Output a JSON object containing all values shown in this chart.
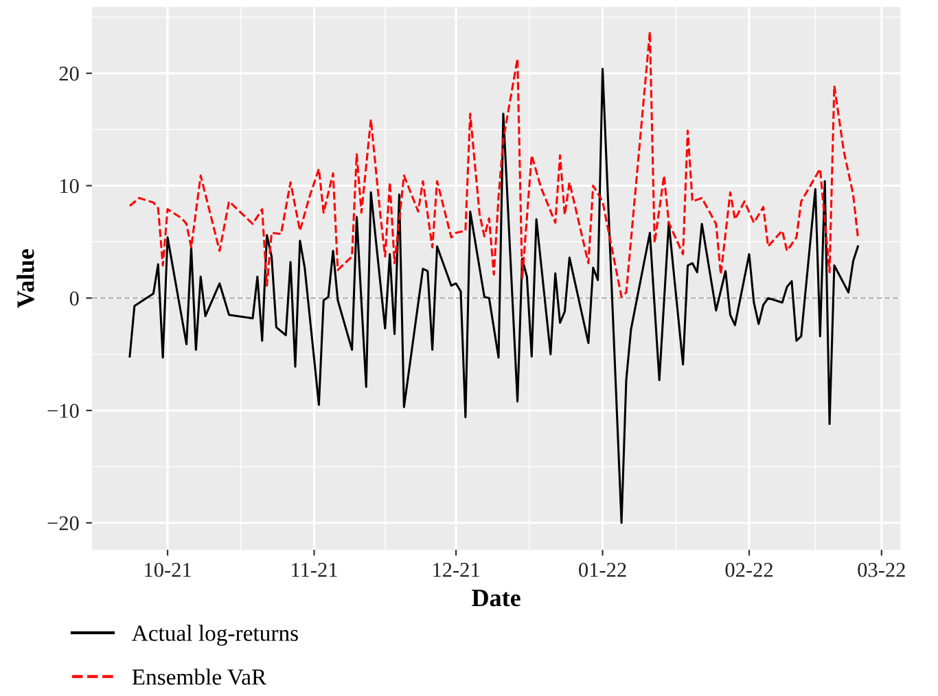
{
  "chart_data": {
    "type": "line",
    "xlabel": "Date",
    "ylabel": "Value",
    "xlim": [
      "2021-09-15",
      "2022-03-05"
    ],
    "ylim": [
      -22.4,
      25.9
    ],
    "xticks": [
      {
        "value": "2021-10-01",
        "label": "10-21"
      },
      {
        "value": "2021-11-01",
        "label": "11-21"
      },
      {
        "value": "2021-12-01",
        "label": "12-21"
      },
      {
        "value": "2022-01-01",
        "label": "01-22"
      },
      {
        "value": "2022-02-01",
        "label": "02-22"
      },
      {
        "value": "2022-03-01",
        "label": "03-22"
      }
    ],
    "yticks": [
      -20,
      -10,
      0,
      10,
      20
    ],
    "grid": true,
    "legend": "bottom left",
    "ref_lines": [
      {
        "axis": "y",
        "value": 0,
        "color": "#aaaaaa",
        "line_style": "dashed"
      }
    ],
    "series": [
      {
        "name": "Actual log-returns",
        "color": "#000000",
        "line_style": "solid",
        "x": [
          "2021-09-23",
          "2021-09-24",
          "2021-09-28",
          "2021-09-29",
          "2021-09-30",
          "2021-10-01",
          "2021-10-05",
          "2021-10-06",
          "2021-10-07",
          "2021-10-08",
          "2021-10-09",
          "2021-10-12",
          "2021-10-14",
          "2021-10-19",
          "2021-10-20",
          "2021-10-21",
          "2021-10-22",
          "2021-10-23",
          "2021-10-24",
          "2021-10-26",
          "2021-10-27",
          "2021-10-28",
          "2021-10-29",
          "2021-10-30",
          "2021-11-02",
          "2021-11-03",
          "2021-11-04",
          "2021-11-05",
          "2021-11-06",
          "2021-11-09",
          "2021-11-10",
          "2021-11-12",
          "2021-11-13",
          "2021-11-16",
          "2021-11-17",
          "2021-11-18",
          "2021-11-19",
          "2021-11-20",
          "2021-11-24",
          "2021-11-25",
          "2021-11-26",
          "2021-11-27",
          "2021-11-30",
          "2021-12-01",
          "2021-12-02",
          "2021-12-03",
          "2021-12-04",
          "2021-12-07",
          "2021-12-08",
          "2021-12-10",
          "2021-12-11",
          "2021-12-14",
          "2021-12-15",
          "2021-12-16",
          "2021-12-17",
          "2021-12-18",
          "2021-12-21",
          "2021-12-22",
          "2021-12-23",
          "2021-12-24",
          "2021-12-25",
          "2021-12-29",
          "2021-12-30",
          "2021-12-31",
          "2022-01-01",
          "2022-01-05",
          "2022-01-06",
          "2022-01-07",
          "2022-01-11",
          "2022-01-13",
          "2022-01-15",
          "2022-01-18",
          "2022-01-19",
          "2022-01-20",
          "2022-01-21",
          "2022-01-22",
          "2022-01-25",
          "2022-01-27",
          "2022-01-28",
          "2022-01-29",
          "2022-02-01",
          "2022-02-02",
          "2022-02-03",
          "2022-02-04",
          "2022-02-05",
          "2022-02-08",
          "2022-02-09",
          "2022-02-10",
          "2022-02-11",
          "2022-02-12",
          "2022-02-15",
          "2022-02-16",
          "2022-02-17",
          "2022-02-18",
          "2022-02-19",
          "2022-02-22",
          "2022-02-23",
          "2022-02-24"
        ],
        "values": [
          -5.2,
          -0.7,
          0.4,
          3.0,
          -5.3,
          5.4,
          -4.1,
          4.5,
          -4.6,
          1.9,
          -1.6,
          1.3,
          -1.5,
          -1.8,
          1.9,
          -3.8,
          5.6,
          3.7,
          -2.6,
          -3.3,
          3.2,
          -6.1,
          5.1,
          2.7,
          -9.5,
          -0.2,
          0.1,
          4.2,
          -0.2,
          -4.6,
          7.2,
          -7.9,
          9.4,
          -2.7,
          3.9,
          -3.2,
          9.2,
          -9.7,
          2.6,
          2.4,
          -4.6,
          4.6,
          1.1,
          1.3,
          0.6,
          -10.6,
          7.7,
          0.1,
          0,
          -5.3,
          16.4,
          -9.2,
          3.5,
          1.9,
          -5.2,
          7.0,
          -5.0,
          2.2,
          -2.2,
          -1.2,
          3.6,
          -4.0,
          2.7,
          1.6,
          20.4,
          -20.0,
          -7.3,
          -2.8,
          5.8,
          -7.3,
          6.7,
          -5.9,
          2.9,
          3.1,
          2.3,
          6.6,
          -1.1,
          2.4,
          -1.5,
          -2.4,
          3.9,
          -0.4,
          -2.3,
          -0.6,
          0,
          -0.4,
          1.0,
          1.5,
          -3.8,
          -3.4,
          9.7,
          -3.4,
          10.4,
          -11.2,
          2.9,
          0.5,
          3.3,
          4.6
        ]
      },
      {
        "name": "Ensemble VaR",
        "color": "#ff0000",
        "line_style": "dashed",
        "x": [
          "2021-09-23",
          "2021-09-25",
          "2021-09-28",
          "2021-09-29",
          "2021-09-30",
          "2021-10-01",
          "2021-10-04",
          "2021-10-05",
          "2021-10-06",
          "2021-10-08",
          "2021-10-12",
          "2021-10-14",
          "2021-10-19",
          "2021-10-21",
          "2021-10-22",
          "2021-10-23",
          "2021-10-25",
          "2021-10-27",
          "2021-10-29",
          "2021-10-31",
          "2021-11-02",
          "2021-11-03",
          "2021-11-05",
          "2021-11-06",
          "2021-11-09",
          "2021-11-10",
          "2021-11-11",
          "2021-11-13",
          "2021-11-15",
          "2021-11-16",
          "2021-11-17",
          "2021-11-18",
          "2021-11-20",
          "2021-11-23",
          "2021-11-24",
          "2021-11-26",
          "2021-11-27",
          "2021-11-30",
          "2021-12-01",
          "2021-12-03",
          "2021-12-04",
          "2021-12-06",
          "2021-12-07",
          "2021-12-08",
          "2021-12-09",
          "2021-12-10",
          "2021-12-11",
          "2021-12-14",
          "2021-12-15",
          "2021-12-17",
          "2021-12-19",
          "2021-12-22",
          "2021-12-23",
          "2021-12-24",
          "2021-12-25",
          "2021-12-29",
          "2021-12-30",
          "2022-01-01",
          "2022-01-05",
          "2022-01-06",
          "2022-01-11",
          "2022-01-12",
          "2022-01-14",
          "2022-01-15",
          "2022-01-18",
          "2022-01-19",
          "2022-01-20",
          "2022-01-22",
          "2022-01-25",
          "2022-01-26",
          "2022-01-28",
          "2022-01-29",
          "2022-01-31",
          "2022-02-02",
          "2022-02-04",
          "2022-02-05",
          "2022-02-08",
          "2022-02-09",
          "2022-02-11",
          "2022-02-12",
          "2022-02-16",
          "2022-02-18",
          "2022-02-19",
          "2022-02-21",
          "2022-02-23",
          "2022-02-24"
        ],
        "values": [
          8.2,
          8.9,
          8.5,
          8.0,
          2.9,
          7.9,
          7.1,
          6.6,
          4.5,
          10.9,
          4.2,
          8.6,
          6.6,
          7.9,
          1.1,
          5.8,
          5.7,
          10.3,
          6.0,
          9.0,
          11.5,
          7.6,
          11.1,
          2.5,
          3.7,
          12.8,
          7.6,
          15.9,
          7.4,
          3.7,
          10.3,
          3.1,
          10.9,
          7.7,
          10.4,
          4.5,
          10.4,
          5.4,
          5.8,
          6.0,
          16.4,
          7.4,
          5.5,
          7.1,
          2.1,
          9.0,
          14.1,
          21.3,
          1.7,
          12.7,
          9.8,
          6.7,
          12.7,
          7.4,
          10.3,
          3.1,
          10.0,
          8.6,
          0.1,
          0.5,
          23.7,
          4.9,
          10.9,
          6.7,
          3.9,
          14.9,
          8.6,
          8.9,
          6.6,
          2.1,
          9.4,
          7.0,
          8.6,
          6.7,
          8.1,
          4.6,
          6.0,
          4.2,
          5.4,
          8.6,
          11.5,
          2.3,
          18.9,
          13.1,
          9.2,
          5.4
        ]
      }
    ]
  }
}
